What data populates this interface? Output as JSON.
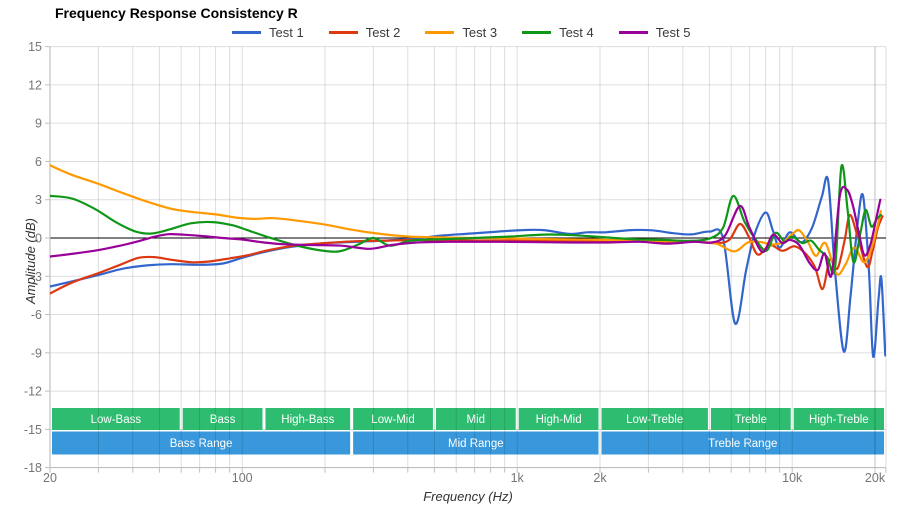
{
  "chart_data": {
    "type": "line",
    "title": "Frequency Response Consistency R",
    "xlabel": "Frequency (Hz)",
    "ylabel": "Amplitude (dB)",
    "x_scale": "log",
    "x_range": [
      20,
      21900
    ],
    "ylim": [
      -18,
      15
    ],
    "grid": true,
    "legend_position": "top",
    "y_ticks": [
      15,
      12,
      9,
      6,
      3,
      0,
      -3,
      -6,
      -9,
      -12,
      -15,
      -18
    ],
    "x_ticks": [
      {
        "f": 20,
        "label": "20"
      },
      {
        "f": 100,
        "label": "100"
      },
      {
        "f": 1000,
        "label": "1k"
      },
      {
        "f": 2000,
        "label": "2k"
      },
      {
        "f": 10000,
        "label": "10k"
      },
      {
        "f": 20000,
        "label": "20k"
      }
    ],
    "colors": {
      "grid": "rgba(0,0,0,0.13)",
      "zero_line": "#000000",
      "axis_line": "#b5b5b5",
      "tick": "#c0c0c0",
      "tick_label": "#757575",
      "band_text": "#ffffff"
    },
    "series": [
      {
        "name": "Test 1",
        "color": "#3366CC",
        "points": [
          [
            20,
            -3.8
          ],
          [
            24,
            -3.4
          ],
          [
            30,
            -2.9
          ],
          [
            37,
            -2.4
          ],
          [
            45,
            -2.15
          ],
          [
            55,
            -2.05
          ],
          [
            70,
            -2.1
          ],
          [
            85,
            -2.0
          ],
          [
            100,
            -1.55
          ],
          [
            120,
            -1.1
          ],
          [
            150,
            -0.7
          ],
          [
            200,
            -0.4
          ],
          [
            260,
            -0.3
          ],
          [
            330,
            -0.2
          ],
          [
            420,
            -0.05
          ],
          [
            540,
            0.2
          ],
          [
            680,
            0.35
          ],
          [
            850,
            0.5
          ],
          [
            1050,
            0.62
          ],
          [
            1250,
            0.62
          ],
          [
            1550,
            0.32
          ],
          [
            1800,
            0.45
          ],
          [
            2100,
            0.45
          ],
          [
            2600,
            0.62
          ],
          [
            3100,
            0.6
          ],
          [
            3700,
            0.38
          ],
          [
            4300,
            0.28
          ],
          [
            5000,
            0.5
          ],
          [
            5600,
            0.0
          ],
          [
            6200,
            -6.7
          ],
          [
            6800,
            -2.5
          ],
          [
            7300,
            0.3
          ],
          [
            8000,
            2.0
          ],
          [
            8500,
            0.6
          ],
          [
            9000,
            -0.75
          ],
          [
            9800,
            0.45
          ],
          [
            10800,
            -0.35
          ],
          [
            11800,
            0.8
          ],
          [
            12800,
            3.2
          ],
          [
            13500,
            4.5
          ],
          [
            14300,
            -2.5
          ],
          [
            15400,
            -8.9
          ],
          [
            16300,
            -4.5
          ],
          [
            17300,
            1.2
          ],
          [
            18100,
            3.3
          ],
          [
            19000,
            -2.5
          ],
          [
            19700,
            -9.3
          ],
          [
            20600,
            -4.8
          ],
          [
            21100,
            -3.2
          ],
          [
            21800,
            -9.2
          ]
        ]
      },
      {
        "name": "Test 2",
        "color": "#DC3912",
        "points": [
          [
            20,
            -4.35
          ],
          [
            24,
            -3.5
          ],
          [
            30,
            -2.75
          ],
          [
            36,
            -2.1
          ],
          [
            42,
            -1.55
          ],
          [
            48,
            -1.5
          ],
          [
            55,
            -1.7
          ],
          [
            65,
            -1.9
          ],
          [
            75,
            -1.85
          ],
          [
            90,
            -1.6
          ],
          [
            105,
            -1.35
          ],
          [
            125,
            -0.95
          ],
          [
            155,
            -0.6
          ],
          [
            200,
            -0.4
          ],
          [
            260,
            -0.25
          ],
          [
            340,
            -0.2
          ],
          [
            430,
            -0.15
          ],
          [
            560,
            -0.18
          ],
          [
            720,
            -0.2
          ],
          [
            920,
            -0.2
          ],
          [
            1200,
            -0.22
          ],
          [
            1600,
            -0.25
          ],
          [
            2100,
            -0.25
          ],
          [
            2800,
            -0.25
          ],
          [
            3600,
            -0.3
          ],
          [
            4500,
            -0.3
          ],
          [
            5300,
            -0.4
          ],
          [
            5900,
            -0.15
          ],
          [
            6450,
            1.1
          ],
          [
            6950,
            0.1
          ],
          [
            7500,
            -1.3
          ],
          [
            8300,
            -0.55
          ],
          [
            9200,
            -1.0
          ],
          [
            10200,
            -0.65
          ],
          [
            11200,
            -1.25
          ],
          [
            12100,
            -2.3
          ],
          [
            12900,
            -4.0
          ],
          [
            13700,
            -1.7
          ],
          [
            14600,
            -2.4
          ],
          [
            15500,
            -0.2
          ],
          [
            16200,
            1.8
          ],
          [
            17200,
            0.3
          ],
          [
            18700,
            -2.25
          ],
          [
            19600,
            -1.0
          ],
          [
            20500,
            0.8
          ],
          [
            21300,
            1.7
          ]
        ]
      },
      {
        "name": "Test 3",
        "color": "#FF9900",
        "points": [
          [
            20,
            5.7
          ],
          [
            24,
            4.95
          ],
          [
            30,
            4.25
          ],
          [
            37,
            3.5
          ],
          [
            45,
            2.85
          ],
          [
            55,
            2.3
          ],
          [
            65,
            2.05
          ],
          [
            80,
            1.85
          ],
          [
            95,
            1.6
          ],
          [
            110,
            1.5
          ],
          [
            130,
            1.55
          ],
          [
            160,
            1.35
          ],
          [
            200,
            1.05
          ],
          [
            250,
            0.65
          ],
          [
            310,
            0.35
          ],
          [
            400,
            0.12
          ],
          [
            520,
            0.05
          ],
          [
            700,
            0.0
          ],
          [
            900,
            -0.02
          ],
          [
            1200,
            -0.08
          ],
          [
            1600,
            -0.12
          ],
          [
            2100,
            -0.15
          ],
          [
            2800,
            -0.2
          ],
          [
            3600,
            -0.25
          ],
          [
            4500,
            -0.3
          ],
          [
            5300,
            -0.45
          ],
          [
            6150,
            -1.05
          ],
          [
            6900,
            -0.35
          ],
          [
            7600,
            -0.3
          ],
          [
            8400,
            -0.5
          ],
          [
            9200,
            -0.35
          ],
          [
            10000,
            0.3
          ],
          [
            10600,
            0.6
          ],
          [
            11400,
            -0.3
          ],
          [
            12200,
            -1.4
          ],
          [
            13200,
            -0.4
          ],
          [
            14500,
            -2.8
          ],
          [
            15600,
            -2.1
          ],
          [
            16800,
            -0.75
          ],
          [
            18200,
            -1.9
          ],
          [
            19300,
            -1.0
          ],
          [
            20200,
            0.5
          ],
          [
            21000,
            2.1
          ]
        ]
      },
      {
        "name": "Test 4",
        "color": "#109618",
        "points": [
          [
            20,
            3.3
          ],
          [
            24,
            3.1
          ],
          [
            29,
            2.3
          ],
          [
            35,
            1.2
          ],
          [
            41,
            0.5
          ],
          [
            47,
            0.35
          ],
          [
            55,
            0.7
          ],
          [
            65,
            1.15
          ],
          [
            78,
            1.25
          ],
          [
            92,
            1.0
          ],
          [
            105,
            0.6
          ],
          [
            125,
            0.05
          ],
          [
            155,
            -0.55
          ],
          [
            190,
            -0.95
          ],
          [
            225,
            -1.05
          ],
          [
            265,
            -0.5
          ],
          [
            300,
            0.0
          ],
          [
            345,
            -0.6
          ],
          [
            410,
            -0.2
          ],
          [
            520,
            -0.1
          ],
          [
            700,
            0.0
          ],
          [
            950,
            0.12
          ],
          [
            1250,
            0.27
          ],
          [
            1600,
            0.22
          ],
          [
            2100,
            0.05
          ],
          [
            2700,
            -0.1
          ],
          [
            3400,
            -0.15
          ],
          [
            4200,
            -0.22
          ],
          [
            5000,
            -0.05
          ],
          [
            5600,
            0.8
          ],
          [
            6100,
            3.3
          ],
          [
            6700,
            1.3
          ],
          [
            7300,
            0.0
          ],
          [
            8050,
            -1.0
          ],
          [
            8700,
            0.4
          ],
          [
            9400,
            -0.3
          ],
          [
            10000,
            0.1
          ],
          [
            10900,
            -0.4
          ],
          [
            11700,
            -0.2
          ],
          [
            12500,
            -0.9
          ],
          [
            13400,
            -1.5
          ],
          [
            14300,
            -2.4
          ],
          [
            15100,
            5.6
          ],
          [
            15900,
            2.2
          ],
          [
            16700,
            -1.9
          ],
          [
            17700,
            0.4
          ],
          [
            18500,
            2.2
          ],
          [
            19400,
            0.9
          ],
          [
            20300,
            1.5
          ],
          [
            21000,
            1.8
          ]
        ]
      },
      {
        "name": "Test 5",
        "color": "#990099",
        "points": [
          [
            20,
            -1.45
          ],
          [
            24,
            -1.25
          ],
          [
            30,
            -0.95
          ],
          [
            36,
            -0.6
          ],
          [
            42,
            -0.25
          ],
          [
            48,
            0.1
          ],
          [
            54,
            0.3
          ],
          [
            62,
            0.25
          ],
          [
            72,
            0.15
          ],
          [
            85,
            0.0
          ],
          [
            100,
            -0.12
          ],
          [
            120,
            -0.35
          ],
          [
            145,
            -0.5
          ],
          [
            180,
            -0.55
          ],
          [
            230,
            -0.6
          ],
          [
            290,
            -0.85
          ],
          [
            350,
            -0.55
          ],
          [
            430,
            -0.35
          ],
          [
            550,
            -0.3
          ],
          [
            700,
            -0.3
          ],
          [
            900,
            -0.3
          ],
          [
            1200,
            -0.33
          ],
          [
            1600,
            -0.35
          ],
          [
            2100,
            -0.35
          ],
          [
            2800,
            -0.3
          ],
          [
            3500,
            -0.45
          ],
          [
            4400,
            -0.3
          ],
          [
            5100,
            -0.35
          ],
          [
            5700,
            0.2
          ],
          [
            6450,
            2.5
          ],
          [
            7000,
            0.8
          ],
          [
            7800,
            -1.1
          ],
          [
            8500,
            0.25
          ],
          [
            9200,
            -0.4
          ],
          [
            9800,
            -0.15
          ],
          [
            10600,
            -0.55
          ],
          [
            11600,
            -2.0
          ],
          [
            12400,
            -2.5
          ],
          [
            13100,
            -1.2
          ],
          [
            13900,
            -2.9
          ],
          [
            14900,
            3.3
          ],
          [
            15800,
            3.8
          ],
          [
            16600,
            2.6
          ],
          [
            17500,
            0.3
          ],
          [
            18300,
            -1.35
          ],
          [
            19200,
            -0.6
          ],
          [
            20200,
            1.5
          ],
          [
            20900,
            3.0
          ]
        ]
      }
    ],
    "bands": {
      "sub_color": "#2EBD70",
      "main_color": "#3898DB",
      "sub_row": [
        {
          "label": "Low-Bass",
          "from": 20,
          "to": 60
        },
        {
          "label": "Bass",
          "from": 60,
          "to": 120
        },
        {
          "label": "High-Bass",
          "from": 120,
          "to": 250
        },
        {
          "label": "Low-Mid",
          "from": 250,
          "to": 500
        },
        {
          "label": "Mid",
          "from": 500,
          "to": 1000
        },
        {
          "label": "High-Mid",
          "from": 1000,
          "to": 2000
        },
        {
          "label": "Low-Treble",
          "from": 2000,
          "to": 5000
        },
        {
          "label": "Treble",
          "from": 5000,
          "to": 10000
        },
        {
          "label": "High-Treble",
          "from": 10000,
          "to": 20000
        }
      ],
      "main_row": [
        {
          "label": "Bass Range",
          "from": 20,
          "to": 250
        },
        {
          "label": "Mid Range",
          "from": 250,
          "to": 2000
        },
        {
          "label": "Treble Range",
          "from": 2000,
          "to": 20000
        }
      ]
    }
  }
}
